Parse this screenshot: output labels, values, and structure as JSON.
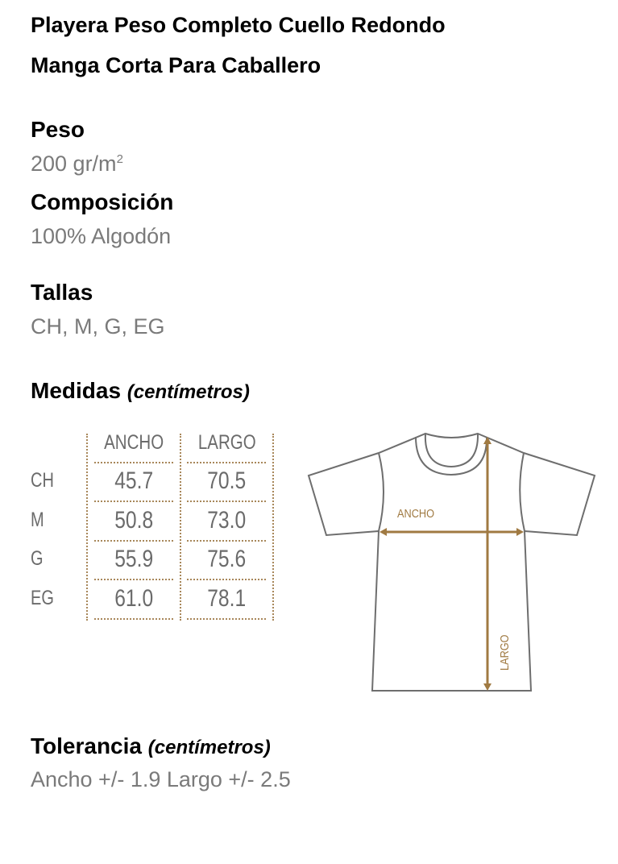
{
  "title_lines": [
    "Playera Peso Completo Cuello Redondo",
    "Manga Corta Para Caballero"
  ],
  "peso": {
    "label": "Peso",
    "value": "200 gr/m",
    "sup": "2"
  },
  "composicion": {
    "label": "Composición",
    "value": "100% Algodón"
  },
  "tallas": {
    "label": "Tallas",
    "value": "CH, M, G, EG"
  },
  "medidas": {
    "label": "Medidas",
    "unit": "(centímetros)",
    "columns": [
      "ANCHO",
      "LARGO"
    ],
    "rows": [
      {
        "size": "CH",
        "ancho": "45.7",
        "largo": "70.5"
      },
      {
        "size": "M",
        "ancho": "50.8",
        "largo": "73.0"
      },
      {
        "size": "G",
        "ancho": "55.9",
        "largo": "75.6"
      },
      {
        "size": "EG",
        "ancho": "61.0",
        "largo": "78.1"
      }
    ]
  },
  "diagram": {
    "ancho_label": "ANCHO",
    "largo_label": "LARGO",
    "accent": "#a07a42",
    "outline": "#6e6e6e"
  },
  "tolerancia": {
    "label": "Tolerancia",
    "unit": "(centímetros)",
    "value": "Ancho +/- 1.9 Largo +/- 2.5"
  }
}
